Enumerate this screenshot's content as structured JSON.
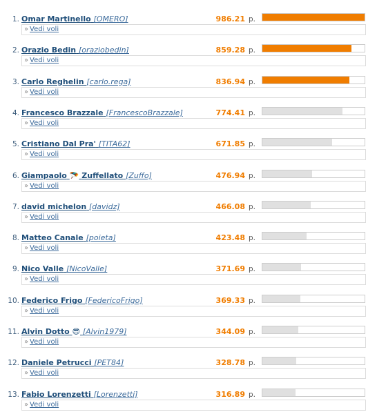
{
  "ranking": {
    "points_unit": "p.",
    "see_flights_label": "Vedi voli",
    "see_flights_prefix": "»",
    "accent_color": "#f07d00",
    "neutral_bar_color": "#e0e0e0",
    "max_points": 986.21,
    "rows": [
      {
        "rank": "1.",
        "name": "Omar Martinello",
        "nickname": "[OMERO]",
        "points": "986.21",
        "value": 986.21,
        "highlight": true
      },
      {
        "rank": "2.",
        "name": "Orazio Bedin",
        "nickname": "[oraziobedin]",
        "points": "859.28",
        "value": 859.28,
        "highlight": true
      },
      {
        "rank": "3.",
        "name": "Carlo Reghelin",
        "nickname": "[carlo.rega]",
        "points": "836.94",
        "value": 836.94,
        "highlight": true
      },
      {
        "rank": "4.",
        "name": "Francesco Brazzale",
        "nickname": "[FrancescoBrazzale]",
        "points": "774.41",
        "value": 774.41,
        "highlight": false
      },
      {
        "rank": "5.",
        "name": "Cristiano Dal Pra'",
        "nickname": "[TITA62]",
        "points": "671.85",
        "value": 671.85,
        "highlight": false
      },
      {
        "rank": "6.",
        "name": "Giampaolo",
        "name_icon": "🪂",
        "name_after": "Zuffellato",
        "nickname": "[Zuffo]",
        "points": "476.94",
        "value": 476.94,
        "highlight": false
      },
      {
        "rank": "7.",
        "name": "david michelon",
        "nickname": "[davidz]",
        "points": "466.08",
        "value": 466.08,
        "highlight": false
      },
      {
        "rank": "8.",
        "name": "Matteo Canale",
        "nickname": "[poieta]",
        "points": "423.48",
        "value": 423.48,
        "highlight": false
      },
      {
        "rank": "9.",
        "name": "Nico Valle",
        "nickname": "[NicoValle]",
        "points": "371.69",
        "value": 371.69,
        "highlight": false
      },
      {
        "rank": "10.",
        "name": "Federico Frigo",
        "nickname": "[FedericoFrigo]",
        "points": "369.33",
        "value": 369.33,
        "highlight": false
      },
      {
        "rank": "11.",
        "name": "Alvin Dotto",
        "name_icon": "😎",
        "nickname": "[Alvin1979]",
        "points": "344.09",
        "value": 344.09,
        "highlight": false
      },
      {
        "rank": "12.",
        "name": "Daniele Petrucci",
        "nickname": "[PET84]",
        "points": "328.78",
        "value": 328.78,
        "highlight": false
      },
      {
        "rank": "13.",
        "name": "Fabio Lorenzetti",
        "nickname": "[Lorenzetti]",
        "points": "316.89",
        "value": 316.89,
        "highlight": false
      }
    ]
  }
}
